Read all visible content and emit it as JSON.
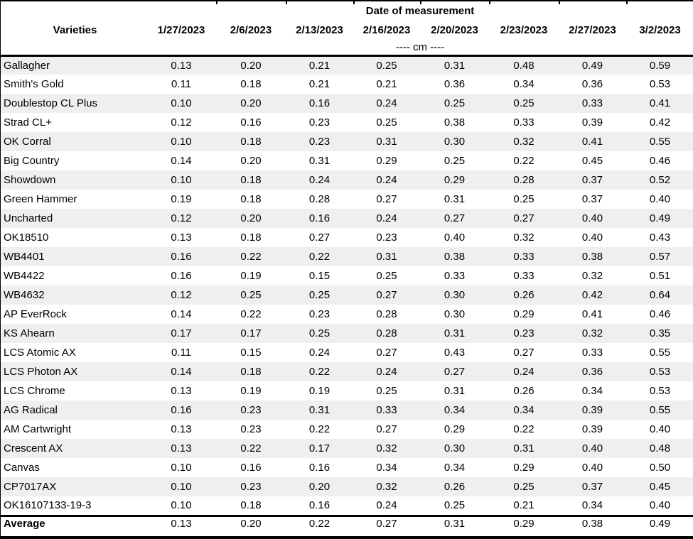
{
  "table": {
    "title": "Date of measurement",
    "varieties_header": "Varieties",
    "unit_label": "---- cm ----",
    "dates": [
      "1/27/2023",
      "2/6/2023",
      "2/13/2023",
      "2/16/2023",
      "2/20/2023",
      "2/23/2023",
      "2/27/2023",
      "3/2/2023"
    ],
    "rows": [
      {
        "variety": "Gallagher",
        "values": [
          "0.13",
          "0.20",
          "0.21",
          "0.25",
          "0.31",
          "0.48",
          "0.49",
          "0.59"
        ]
      },
      {
        "variety": "Smith's Gold",
        "values": [
          "0.11",
          "0.18",
          "0.21",
          "0.21",
          "0.36",
          "0.34",
          "0.36",
          "0.53"
        ]
      },
      {
        "variety": "Doublestop CL Plus",
        "values": [
          "0.10",
          "0.20",
          "0.16",
          "0.24",
          "0.25",
          "0.25",
          "0.33",
          "0.41"
        ]
      },
      {
        "variety": "Strad CL+",
        "values": [
          "0.12",
          "0.16",
          "0.23",
          "0.25",
          "0.38",
          "0.33",
          "0.39",
          "0.42"
        ]
      },
      {
        "variety": "OK Corral",
        "values": [
          "0.10",
          "0.18",
          "0.23",
          "0.31",
          "0.30",
          "0.32",
          "0.41",
          "0.55"
        ]
      },
      {
        "variety": "Big Country",
        "values": [
          "0.14",
          "0.20",
          "0.31",
          "0.29",
          "0.25",
          "0.22",
          "0.45",
          "0.46"
        ]
      },
      {
        "variety": "Showdown",
        "values": [
          "0.10",
          "0.18",
          "0.24",
          "0.24",
          "0.29",
          "0.28",
          "0.37",
          "0.52"
        ]
      },
      {
        "variety": "Green Hammer",
        "values": [
          "0.19",
          "0.18",
          "0.28",
          "0.27",
          "0.31",
          "0.25",
          "0.37",
          "0.40"
        ]
      },
      {
        "variety": "Uncharted",
        "values": [
          "0.12",
          "0.20",
          "0.16",
          "0.24",
          "0.27",
          "0.27",
          "0.40",
          "0.49"
        ]
      },
      {
        "variety": "OK18510",
        "values": [
          "0.13",
          "0.18",
          "0.27",
          "0.23",
          "0.40",
          "0.32",
          "0.40",
          "0.43"
        ]
      },
      {
        "variety": "WB4401",
        "values": [
          "0.16",
          "0.22",
          "0.22",
          "0.31",
          "0.38",
          "0.33",
          "0.38",
          "0.57"
        ]
      },
      {
        "variety": "WB4422",
        "values": [
          "0.16",
          "0.19",
          "0.15",
          "0.25",
          "0.33",
          "0.33",
          "0.32",
          "0.51"
        ]
      },
      {
        "variety": "WB4632",
        "values": [
          "0.12",
          "0.25",
          "0.25",
          "0.27",
          "0.30",
          "0.26",
          "0.42",
          "0.64"
        ]
      },
      {
        "variety": "AP EverRock",
        "values": [
          "0.14",
          "0.22",
          "0.23",
          "0.28",
          "0.30",
          "0.29",
          "0.41",
          "0.46"
        ]
      },
      {
        "variety": "KS Ahearn",
        "values": [
          "0.17",
          "0.17",
          "0.25",
          "0.28",
          "0.31",
          "0.23",
          "0.32",
          "0.35"
        ]
      },
      {
        "variety": "LCS Atomic AX",
        "values": [
          "0.11",
          "0.15",
          "0.24",
          "0.27",
          "0.43",
          "0.27",
          "0.33",
          "0.55"
        ]
      },
      {
        "variety": "LCS Photon AX",
        "values": [
          "0.14",
          "0.18",
          "0.22",
          "0.24",
          "0.27",
          "0.24",
          "0.36",
          "0.53"
        ]
      },
      {
        "variety": "LCS Chrome",
        "values": [
          "0.13",
          "0.19",
          "0.19",
          "0.25",
          "0.31",
          "0.26",
          "0.34",
          "0.53"
        ]
      },
      {
        "variety": "AG Radical",
        "values": [
          "0.16",
          "0.23",
          "0.31",
          "0.33",
          "0.34",
          "0.34",
          "0.39",
          "0.55"
        ]
      },
      {
        "variety": "AM Cartwright",
        "values": [
          "0.13",
          "0.23",
          "0.22",
          "0.27",
          "0.29",
          "0.22",
          "0.39",
          "0.40"
        ]
      },
      {
        "variety": "Crescent AX",
        "values": [
          "0.13",
          "0.22",
          "0.17",
          "0.32",
          "0.30",
          "0.31",
          "0.40",
          "0.48"
        ]
      },
      {
        "variety": "Canvas",
        "values": [
          "0.10",
          "0.16",
          "0.16",
          "0.34",
          "0.34",
          "0.29",
          "0.40",
          "0.50"
        ]
      },
      {
        "variety": "CP7017AX",
        "values": [
          "0.10",
          "0.23",
          "0.20",
          "0.32",
          "0.26",
          "0.25",
          "0.37",
          "0.45"
        ]
      },
      {
        "variety": "OK16107133-19-3",
        "values": [
          "0.10",
          "0.18",
          "0.16",
          "0.24",
          "0.25",
          "0.21",
          "0.34",
          "0.40"
        ]
      }
    ],
    "average": {
      "label": "Average",
      "values": [
        "0.13",
        "0.20",
        "0.22",
        "0.27",
        "0.31",
        "0.29",
        "0.38",
        "0.49"
      ]
    },
    "colors": {
      "stripe": "#efefef",
      "border": "#000000",
      "text": "#000000"
    }
  }
}
